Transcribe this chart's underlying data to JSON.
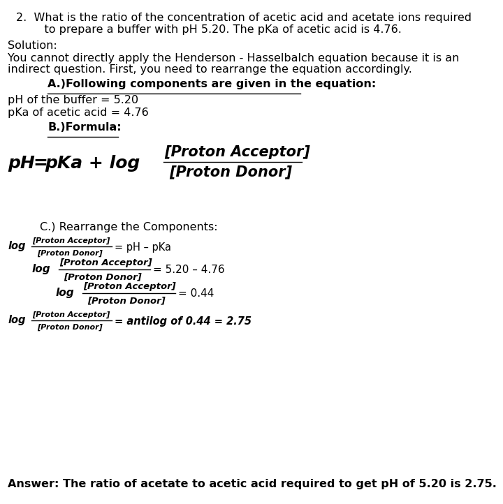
{
  "bg_color": "#ffffff",
  "text_color": "#000000",
  "fig_width": 7.2,
  "fig_height": 7.22,
  "dpi": 100,
  "q_line1": "2.  What is the ratio of the concentration of acetic acid and acetate ions required",
  "q_line2": "    to prepare a buffer with pH 5.20. The pKa of acetic acid is 4.76.",
  "solution_label": "Solution:",
  "desc_line1": "You cannot directly apply the Henderson - Hasselbalch equation because it is an",
  "desc_line2": "indirect question. First, you need to rearrange the equation accordingly.",
  "a_header": "A.)Following components are given in the equation:",
  "ph_given": "pH of the buffer = 5.20",
  "pka_given": "pKa of acetic acid = 4.76",
  "b_header": "B.)Formula:",
  "ph_label": "pH",
  "eq_label": "=",
  "pka_log_label": "pKa + log",
  "proton_acceptor": "[Proton Acceptor]",
  "proton_donor": "[Proton Donor]",
  "c_header": "C.) Rearrange the Components:",
  "step1_rhs": "= pH – pKa",
  "step2_rhs": "= 5.20 – 4.76",
  "step3_rhs": "= 0.44",
  "step4_rhs": "= antilog of 0.44 = 2.75",
  "answer": "Answer: The ratio of acetate to acetic acid required to get pH of 5.20 is 2.75."
}
